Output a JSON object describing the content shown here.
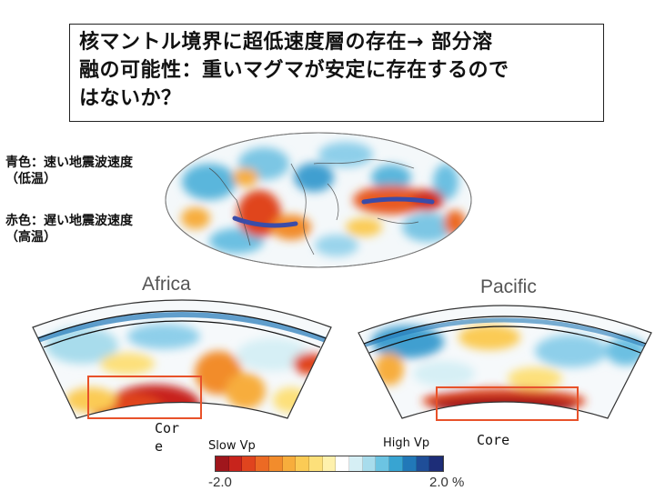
{
  "title": {
    "line1": "核マントル境界に超低速度層の存在→ 部分溶",
    "line2": "融の可能性：重いマグマが安定に存在するので",
    "line3": "はないか？"
  },
  "legend_notes": {
    "blue_line1": "青色：速い地震波速度",
    "blue_line2": "（低温）",
    "red_line1": "赤色：遅い地震波速度",
    "red_line2": "（高温）"
  },
  "sections": {
    "africa_label": "Africa",
    "pacific_label": "Pacific",
    "core_left_line1": "Cor",
    "core_left_line2": "e",
    "core_right": "Core"
  },
  "color_scale": {
    "slow_label": "Slow Vp",
    "high_label": "High Vp",
    "min": "-2.0",
    "max": "2.0 %",
    "colors": [
      "#a0161c",
      "#c8241c",
      "#e0441e",
      "#ec6a24",
      "#f28c2c",
      "#f7ad3c",
      "#fbcb55",
      "#fde07a",
      "#fef1ad",
      "#ffffff",
      "#d6eff5",
      "#a8dcec",
      "#6cc4e2",
      "#38a4d2",
      "#2178b8",
      "#1f4e98",
      "#1d2d78"
    ],
    "color_note": "scale runs from red (slow) to dark blue (fast)"
  }
}
